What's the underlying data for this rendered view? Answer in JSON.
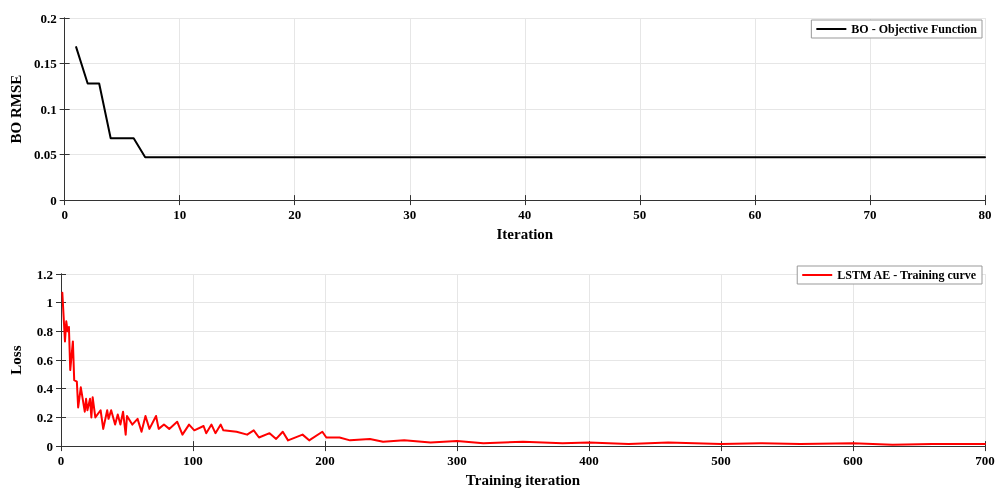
{
  "chart_data": [
    {
      "type": "line",
      "xlabel": "Iteration",
      "ylabel": "BO RMSE",
      "xlim": [
        0,
        80
      ],
      "ylim": [
        0,
        0.2
      ],
      "xticks": [
        0,
        10,
        20,
        30,
        40,
        50,
        60,
        70,
        80
      ],
      "yticks": [
        0,
        0.05,
        0.1,
        0.15,
        0.2
      ],
      "grid": true,
      "legend": "top right",
      "marker": "none",
      "line_style": "solid",
      "series": [
        {
          "name": "BO - Objective Function",
          "color": "#000000",
          "x": [
            1,
            2,
            3,
            4,
            5,
            6,
            7,
            80
          ],
          "values": [
            0.168,
            0.128,
            0.128,
            0.068,
            0.068,
            0.068,
            0.047,
            0.047
          ]
        }
      ]
    },
    {
      "type": "line",
      "xlabel": "Training iteration",
      "ylabel": "Loss",
      "xlim": [
        0,
        700
      ],
      "ylim": [
        0,
        1.2
      ],
      "xticks": [
        0,
        100,
        200,
        300,
        400,
        500,
        600,
        700
      ],
      "yticks": [
        0,
        0.2,
        0.4,
        0.6,
        0.8,
        1,
        1.2
      ],
      "grid": true,
      "legend": "top right",
      "marker": "none",
      "line_style": "solid",
      "series": [
        {
          "name": "LSTM AE - Training curve",
          "color": "#ff0000",
          "x": [
            1,
            3,
            4,
            5,
            6,
            7,
            9,
            10,
            12,
            13,
            15,
            18,
            19,
            20,
            22,
            23,
            24,
            26,
            30,
            32,
            35,
            36,
            38,
            41,
            43,
            45,
            47,
            49,
            50,
            54,
            58,
            61,
            64,
            67,
            72,
            74,
            78,
            82,
            88,
            92,
            97,
            101,
            108,
            110,
            114,
            117,
            121,
            123,
            133,
            141,
            146,
            150,
            158,
            163,
            168,
            172,
            183,
            188,
            198,
            201,
            211,
            219,
            234,
            244,
            260,
            280,
            300,
            320,
            350,
            380,
            400,
            430,
            460,
            500,
            530,
            560,
            600,
            630,
            660,
            700
          ],
          "values": [
            1.07,
            0.73,
            0.87,
            0.8,
            0.83,
            0.53,
            0.73,
            0.46,
            0.45,
            0.27,
            0.41,
            0.24,
            0.33,
            0.25,
            0.33,
            0.2,
            0.34,
            0.2,
            0.25,
            0.12,
            0.25,
            0.19,
            0.25,
            0.15,
            0.22,
            0.15,
            0.24,
            0.08,
            0.21,
            0.15,
            0.19,
            0.1,
            0.21,
            0.12,
            0.21,
            0.12,
            0.15,
            0.12,
            0.17,
            0.08,
            0.15,
            0.11,
            0.14,
            0.09,
            0.15,
            0.09,
            0.15,
            0.11,
            0.1,
            0.08,
            0.11,
            0.06,
            0.09,
            0.05,
            0.1,
            0.04,
            0.08,
            0.04,
            0.1,
            0.06,
            0.06,
            0.04,
            0.05,
            0.03,
            0.04,
            0.025,
            0.035,
            0.02,
            0.03,
            0.02,
            0.025,
            0.015,
            0.025,
            0.015,
            0.02,
            0.015,
            0.02,
            0.01,
            0.015,
            0.015
          ]
        }
      ]
    }
  ]
}
